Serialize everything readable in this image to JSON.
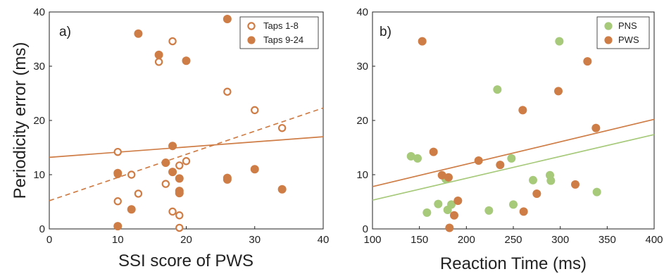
{
  "colors": {
    "orange": "#CF7D46",
    "green": "#A6C97A",
    "axis": "#222222"
  },
  "chart_data": [
    {
      "type": "scatter",
      "panel_label": "a)",
      "xlabel": "SSI score of PWS",
      "ylabel": "Periodicity error (ms)",
      "xlim": [
        0,
        40
      ],
      "ylim": [
        0,
        40
      ],
      "xticks": [
        "0",
        "10",
        "20",
        "30",
        "40"
      ],
      "yticks": [
        "0",
        "10",
        "20",
        "30",
        "40"
      ],
      "legend_position": "top-right",
      "grid": false,
      "series": [
        {
          "name": "Taps 1-8",
          "marker": "hollow-circle",
          "color": "#CF7D46",
          "trend": {
            "style": "dashed",
            "x": [
              0,
              40
            ],
            "y": [
              5.2,
              22.3
            ]
          },
          "points": [
            [
              10,
              14.2
            ],
            [
              10,
              10.1
            ],
            [
              10,
              5.1
            ],
            [
              12,
              10
            ],
            [
              13,
              6.5
            ],
            [
              16,
              30.8
            ],
            [
              17,
              8.3
            ],
            [
              18,
              34.6
            ],
            [
              18,
              3.2
            ],
            [
              19,
              2.5
            ],
            [
              19,
              0.2
            ],
            [
              19,
              11.7
            ],
            [
              20,
              12.5
            ],
            [
              26,
              25.3
            ],
            [
              30,
              21.9
            ],
            [
              34,
              18.6
            ]
          ]
        },
        {
          "name": "Taps 9-24",
          "marker": "filled-circle",
          "color": "#CF7D46",
          "trend": {
            "style": "solid",
            "x": [
              0,
              40
            ],
            "y": [
              13.2,
              17
            ]
          },
          "points": [
            [
              10,
              10.3
            ],
            [
              10,
              0.5
            ],
            [
              12,
              3.6
            ],
            [
              13,
              36
            ],
            [
              16,
              32.1
            ],
            [
              17,
              12.2
            ],
            [
              18,
              15.3
            ],
            [
              18,
              10.5
            ],
            [
              19,
              9.3
            ],
            [
              19,
              7
            ],
            [
              19,
              6.6
            ],
            [
              20,
              31
            ],
            [
              26,
              38.7
            ],
            [
              26,
              9.4
            ],
            [
              26,
              9.1
            ],
            [
              30,
              11
            ],
            [
              34,
              7.3
            ]
          ]
        }
      ]
    },
    {
      "type": "scatter",
      "panel_label": "b)",
      "xlabel": "Reaction Time (ms)",
      "ylabel": "",
      "xlim": [
        100,
        400
      ],
      "ylim": [
        0,
        40
      ],
      "xticks": [
        "100",
        "150",
        "200",
        "250",
        "300",
        "350",
        "400"
      ],
      "yticks": [
        "0",
        "10",
        "20",
        "30",
        "40"
      ],
      "legend_position": "top-right",
      "grid": false,
      "series": [
        {
          "name": "PNS",
          "marker": "filled-circle",
          "color": "#A6C97A",
          "trend": {
            "style": "solid",
            "x": [
              100,
              400
            ],
            "y": [
              5.3,
              17.4
            ]
          },
          "points": [
            [
              141,
              13.4
            ],
            [
              148,
              13
            ],
            [
              158,
              3
            ],
            [
              170,
              4.6
            ],
            [
              178,
              9.2
            ],
            [
              180,
              3.5
            ],
            [
              184,
              4.5
            ],
            [
              224,
              3.4
            ],
            [
              233,
              25.7
            ],
            [
              248,
              13
            ],
            [
              250,
              4.5
            ],
            [
              271,
              9
            ],
            [
              289,
              9.9
            ],
            [
              290,
              8.9
            ],
            [
              299,
              34.6
            ],
            [
              339,
              6.8
            ]
          ]
        },
        {
          "name": "PWS",
          "marker": "filled-circle",
          "color": "#CF7D46",
          "trend": {
            "style": "solid",
            "x": [
              100,
              400
            ],
            "y": [
              7.8,
              20.2
            ]
          },
          "points": [
            [
              153,
              34.6
            ],
            [
              165,
              14.2
            ],
            [
              174,
              9.9
            ],
            [
              181,
              9.5
            ],
            [
              182,
              0.2
            ],
            [
              187,
              2.5
            ],
            [
              191,
              5.2
            ],
            [
              213,
              12.6
            ],
            [
              236,
              11.8
            ],
            [
              260,
              21.9
            ],
            [
              261,
              3.2
            ],
            [
              275,
              6.5
            ],
            [
              298,
              25.4
            ],
            [
              316,
              8.2
            ],
            [
              329,
              30.9
            ],
            [
              338,
              18.6
            ]
          ]
        }
      ]
    }
  ]
}
